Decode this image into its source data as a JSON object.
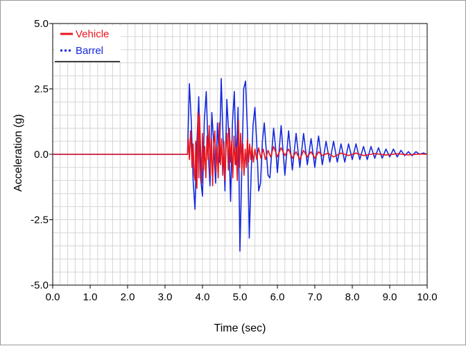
{
  "chart_data": {
    "type": "line",
    "title": "",
    "xlabel": "Time (sec)",
    "ylabel": "Acceleration (g)",
    "xlim": [
      0,
      10
    ],
    "ylim": [
      -5,
      5
    ],
    "xticks": [
      "0.0",
      "1.0",
      "2.0",
      "3.0",
      "4.0",
      "5.0",
      "6.0",
      "7.0",
      "8.0",
      "9.0",
      "10.0"
    ],
    "yticks": [
      "5.0",
      "2.5",
      "0.0",
      "-2.5",
      "-5.0"
    ],
    "xtick_values": [
      0,
      1,
      2,
      3,
      4,
      5,
      6,
      7,
      8,
      9,
      10
    ],
    "ytick_values": [
      5,
      2.5,
      0,
      -2.5,
      -5
    ],
    "grid": true,
    "legend_position": "top-left",
    "series": [
      {
        "name": "Vehicle",
        "color": "#e8141e",
        "style": "solid",
        "x": [
          0,
          3.6,
          3.62,
          3.65,
          3.68,
          3.7,
          3.72,
          3.75,
          3.78,
          3.8,
          3.82,
          3.85,
          3.88,
          3.9,
          3.92,
          3.95,
          3.98,
          4.0,
          4.03,
          4.06,
          4.09,
          4.12,
          4.15,
          4.18,
          4.21,
          4.24,
          4.27,
          4.3,
          4.33,
          4.36,
          4.39,
          4.42,
          4.45,
          4.48,
          4.51,
          4.54,
          4.57,
          4.6,
          4.63,
          4.66,
          4.69,
          4.72,
          4.75,
          4.78,
          4.81,
          4.84,
          4.87,
          4.9,
          4.93,
          4.96,
          4.99,
          5.02,
          5.05,
          5.08,
          5.11,
          5.14,
          5.17,
          5.2,
          5.23,
          5.26,
          5.29,
          5.32,
          5.36,
          5.4,
          5.45,
          5.5,
          5.56,
          5.62,
          5.68,
          5.75,
          5.82,
          5.9,
          6.0,
          6.1,
          6.2,
          6.3,
          6.4,
          6.5,
          6.6,
          6.7,
          6.8,
          6.9,
          7.0,
          7.1,
          7.2,
          7.35,
          7.5,
          7.7,
          7.9,
          8.1,
          8.3,
          8.6,
          8.9,
          9.2,
          9.5,
          9.8,
          10.0
        ],
        "y": [
          0,
          0,
          0.6,
          -0.2,
          0.9,
          0.3,
          -0.5,
          0.4,
          -0.8,
          -1.0,
          0.5,
          -1.3,
          1.6,
          -0.9,
          1.5,
          0.2,
          -1.1,
          0.8,
          -0.6,
          0.3,
          -0.9,
          0.7,
          -0.2,
          1.1,
          -0.8,
          0.6,
          -1.2,
          0.4,
          0.9,
          -0.7,
          0.3,
          -0.9,
          1.2,
          -0.4,
          0.6,
          -0.8,
          0.5,
          -1.0,
          0.3,
          0.8,
          -0.6,
          1.0,
          -0.3,
          0.5,
          -0.9,
          0.7,
          -0.4,
          0.3,
          -1.0,
          1.3,
          -0.5,
          0.8,
          -0.6,
          0.4,
          -0.8,
          0.2,
          -0.5,
          0.6,
          -0.3,
          0.4,
          -0.2,
          0.3,
          -0.3,
          0.2,
          -0.2,
          0.25,
          -0.15,
          0.2,
          -0.2,
          0.15,
          -0.1,
          0.3,
          -0.1,
          0.25,
          -0.05,
          0.2,
          -0.15,
          0.1,
          -0.2,
          0.15,
          -0.1,
          0.1,
          -0.15,
          0.1,
          -0.05,
          0.05,
          -0.1,
          0.05,
          -0.05,
          0.05,
          -0.05,
          0.03,
          -0.03,
          0.02,
          -0.02,
          0.01,
          0
        ]
      },
      {
        "name": "Barrel",
        "color": "#1428dc",
        "style": "dotted",
        "x": [
          0,
          3.6,
          3.65,
          3.7,
          3.75,
          3.8,
          3.85,
          3.9,
          3.95,
          4.0,
          4.05,
          4.1,
          4.15,
          4.2,
          4.25,
          4.3,
          4.35,
          4.4,
          4.45,
          4.5,
          4.55,
          4.6,
          4.65,
          4.7,
          4.75,
          4.8,
          4.85,
          4.9,
          4.95,
          5.0,
          5.05,
          5.1,
          5.15,
          5.2,
          5.25,
          5.3,
          5.35,
          5.4,
          5.45,
          5.5,
          5.55,
          5.6,
          5.65,
          5.7,
          5.75,
          5.8,
          5.85,
          5.9,
          5.95,
          6.0,
          6.1,
          6.2,
          6.3,
          6.4,
          6.5,
          6.6,
          6.7,
          6.8,
          6.9,
          7.0,
          7.1,
          7.2,
          7.3,
          7.4,
          7.5,
          7.6,
          7.7,
          7.8,
          7.9,
          8.0,
          8.1,
          8.2,
          8.3,
          8.4,
          8.5,
          8.6,
          8.7,
          8.8,
          8.9,
          9.0,
          9.1,
          9.2,
          9.3,
          9.4,
          9.5,
          9.6,
          9.7,
          9.8,
          9.9,
          10.0
        ],
        "y": [
          0,
          0,
          2.7,
          1.3,
          -1.0,
          -2.1,
          0.4,
          2.2,
          -0.9,
          -1.6,
          1.3,
          2.4,
          0.2,
          -1.2,
          1.6,
          0.4,
          -1.1,
          1.2,
          -0.3,
          2.9,
          0.6,
          -1.4,
          2.1,
          0.8,
          -1.8,
          1.2,
          2.4,
          -0.4,
          1.8,
          -3.7,
          -0.6,
          2.5,
          2.8,
          0.9,
          -3.2,
          -0.7,
          1.1,
          1.8,
          0.4,
          -1.4,
          -1.1,
          0.5,
          1.2,
          0.2,
          -0.8,
          -0.9,
          0.1,
          1.0,
          0.3,
          -0.7,
          1.1,
          -0.8,
          0.9,
          -0.6,
          0.8,
          -0.5,
          0.8,
          -0.4,
          0.6,
          -0.5,
          0.7,
          -0.4,
          0.5,
          -0.3,
          0.5,
          -0.3,
          0.4,
          -0.3,
          0.4,
          -0.2,
          0.4,
          -0.2,
          0.3,
          -0.2,
          0.3,
          -0.15,
          0.25,
          -0.15,
          0.2,
          -0.1,
          0.2,
          -0.1,
          0.15,
          -0.05,
          0.1,
          -0.05,
          0.1,
          0.0,
          0.05,
          0.0
        ]
      }
    ]
  }
}
